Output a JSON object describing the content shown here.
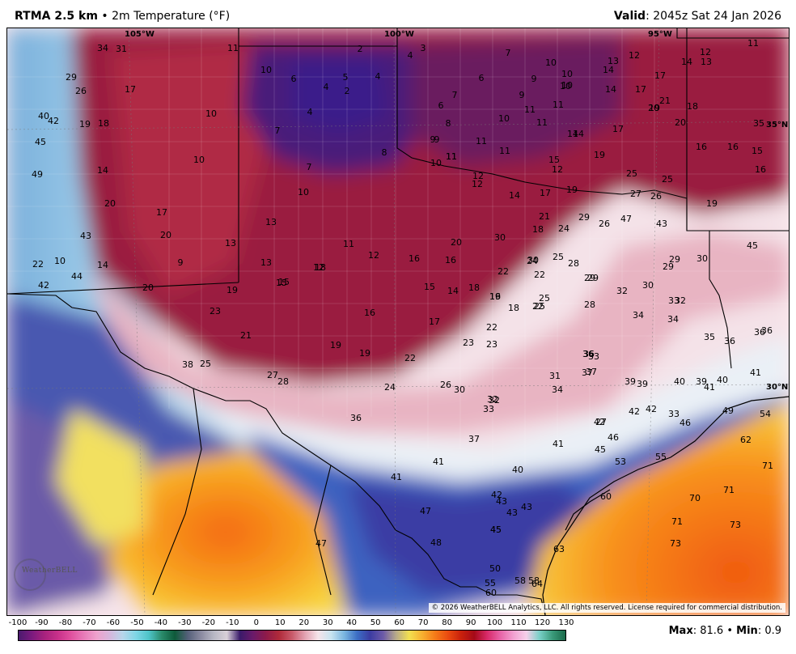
{
  "header": {
    "model": "RTMA 2.5 km",
    "separator": "•",
    "variable": "2m Temperature (°F)",
    "valid_label": "Valid",
    "valid_time": ": 2045z Sat 24 Jan 2026"
  },
  "copyright": "© 2026 WeatherBELL Analytics, LLC. All rights reserved. License required for commercial distribution.",
  "logo_text": "WeatherBELL",
  "meridians": [
    "105°W",
    "100°W",
    "95°W"
  ],
  "parallels": [
    "35°N",
    "30°N"
  ],
  "colorbar": {
    "ticks": [
      "-100",
      "-90",
      "-80",
      "-70",
      "-60",
      "-50",
      "-40",
      "-30",
      "-20",
      "-10",
      "0",
      "10",
      "20",
      "30",
      "40",
      "50",
      "60",
      "70",
      "80",
      "90",
      "100",
      "110",
      "120",
      "130"
    ],
    "colors": [
      "#4a1a6e",
      "#7a1a7e",
      "#a8227e",
      "#c8308a",
      "#e0509e",
      "#e87ab8",
      "#eea2cc",
      "#d6b6dc",
      "#b7d6ea",
      "#7fd6e6",
      "#4ec4c8",
      "#2a8a6a",
      "#0e5a3a",
      "#55607a",
      "#8a8aa0",
      "#b8b8c4",
      "#d8d0d8",
      "#3a1a6a",
      "#6a1a6a",
      "#8e1a4a",
      "#b02a3a",
      "#c85a6a",
      "#e2a2b2",
      "#f6e4ea",
      "#c8e4f0",
      "#7ab6e0",
      "#3c6ec4",
      "#3c3ca2",
      "#6c5aa8",
      "#b8aa8a",
      "#f2e050",
      "#f7b030",
      "#f57a18",
      "#ea4a10",
      "#c8200c",
      "#a40a18",
      "#d82a6a",
      "#e864a8",
      "#f2a0d0",
      "#f6d0ea",
      "#7ad0c8",
      "#3a9a7a",
      "#1a6a4a"
    ]
  },
  "stats": {
    "max_label": "Max",
    "max_value": ": 81.6",
    "sep": "•",
    "min_label": "Min",
    "min_value": ": 0.9"
  },
  "station_values": [
    "34",
    "31",
    "29",
    "26",
    "17",
    "11",
    "2",
    "4",
    "3",
    "7",
    "10",
    "13",
    "12",
    "14",
    "13",
    "11",
    "10",
    "6",
    "4",
    "5",
    "4",
    "2",
    "6",
    "9",
    "10",
    "14",
    "17",
    "12",
    "40",
    "42",
    "19",
    "18",
    "10",
    "7",
    "4",
    "7",
    "8",
    "6",
    "11",
    "9",
    "11",
    "10",
    "14",
    "17",
    "21",
    "19",
    "18",
    "45",
    "10",
    "11",
    "10",
    "11",
    "9",
    "9",
    "11",
    "11",
    "15",
    "19",
    "14",
    "17",
    "20",
    "20",
    "35",
    "49",
    "14",
    "10",
    "7",
    "8",
    "10",
    "11",
    "14",
    "16",
    "16",
    "15",
    "16",
    "12",
    "12",
    "12",
    "25",
    "25",
    "20",
    "17",
    "10",
    "14",
    "17",
    "19",
    "27",
    "26",
    "19",
    "43",
    "20",
    "13",
    "13",
    "15",
    "18",
    "21",
    "24",
    "29",
    "26",
    "47",
    "43",
    "22",
    "10",
    "9",
    "11",
    "12",
    "16",
    "18",
    "20",
    "30",
    "30",
    "29",
    "44",
    "14",
    "13",
    "12",
    "16",
    "18",
    "19",
    "22",
    "24",
    "25",
    "28",
    "29",
    "29",
    "30",
    "45",
    "42",
    "20",
    "19",
    "15",
    "15",
    "14",
    "16",
    "18",
    "22",
    "22",
    "32",
    "30",
    "32",
    "23",
    "16",
    "17",
    "22",
    "25",
    "25",
    "34",
    "34",
    "33",
    "21",
    "19",
    "19",
    "22",
    "23",
    "23",
    "35",
    "36",
    "36",
    "28",
    "29",
    "33",
    "36",
    "36",
    "38",
    "25",
    "27",
    "28",
    "24",
    "26",
    "31",
    "37",
    "37",
    "39",
    "39",
    "40",
    "39",
    "41",
    "40",
    "41",
    "34",
    "30",
    "32",
    "32",
    "33",
    "33",
    "27",
    "42",
    "42",
    "46",
    "49",
    "54",
    "36",
    "37",
    "42",
    "46",
    "36",
    "41",
    "41",
    "45",
    "53",
    "55",
    "62",
    "41",
    "47",
    "40",
    "42",
    "43",
    "43",
    "45",
    "71",
    "60",
    "70",
    "71",
    "43",
    "71",
    "45",
    "73",
    "47",
    "48",
    "73",
    "50",
    "63",
    "58",
    "58",
    "55",
    "60",
    "64"
  ]
}
